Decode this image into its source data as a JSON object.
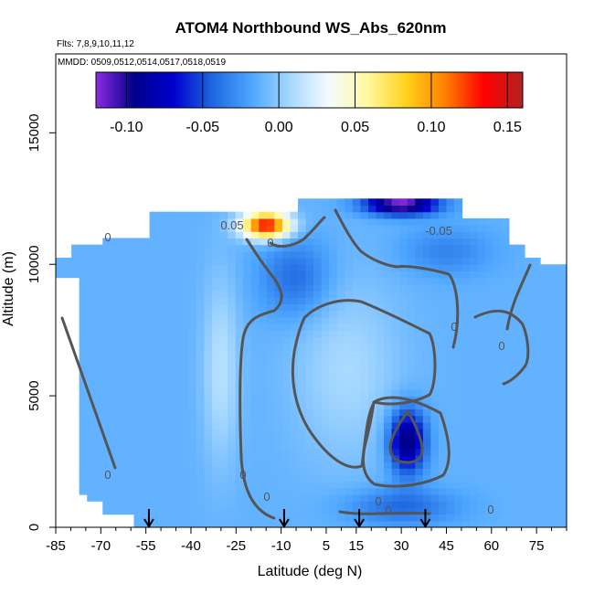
{
  "chart_data": {
    "type": "heatmap",
    "title": "ATOM4 Northbound WS_Abs_620nm",
    "flights_note": "Flts: 7,8,9,10,11,12",
    "dates_note": "MMDD: 0509,0512,0514,0517,0518,0519",
    "xlabel": "Latitude (deg N)",
    "ylabel": "Altitude (m)",
    "xlim": [
      -85,
      85
    ],
    "ylim": [
      0,
      18000
    ],
    "xticks": [
      -85,
      -70,
      -55,
      -40,
      -25,
      -10,
      5,
      15,
      30,
      45,
      60,
      75
    ],
    "yticks": [
      0,
      5000,
      10000,
      15000
    ],
    "colorbar": {
      "range": [
        -0.12,
        0.16
      ],
      "ticks": [
        -0.1,
        -0.05,
        0.0,
        0.05,
        0.1,
        0.15
      ],
      "tick_labels": [
        "-0.10",
        "-0.05",
        "0.00",
        "0.05",
        "0.10",
        "0.15"
      ],
      "colors": [
        "#8a2be2",
        "#00008b",
        "#0000cd",
        "#1e66e0",
        "#4da6ff",
        "#a6d8ff",
        "#f5fbff",
        "#fff9a0",
        "#ffd21a",
        "#ff8000",
        "#ff0000",
        "#b22222"
      ]
    },
    "contour_labels": [
      "0",
      "0",
      "0",
      "0",
      "0",
      "0",
      "0",
      "0",
      "0",
      "0",
      "-0.05",
      "0.05"
    ],
    "profile_latitudes": [
      -54,
      -9,
      16,
      38
    ],
    "field_features": [
      {
        "name": "absorption maximum",
        "lat": -15,
        "alt": 11500,
        "value": 0.15
      },
      {
        "name": "upper absorption minimum",
        "lat": 30,
        "alt": 12300,
        "value": -0.11
      },
      {
        "name": "mid absorption minimum",
        "lat": 32,
        "alt": 3300,
        "value": -0.09
      },
      {
        "name": "mid-latitude plume",
        "lat": 12,
        "alt": 6000,
        "value": 0.02
      }
    ]
  }
}
